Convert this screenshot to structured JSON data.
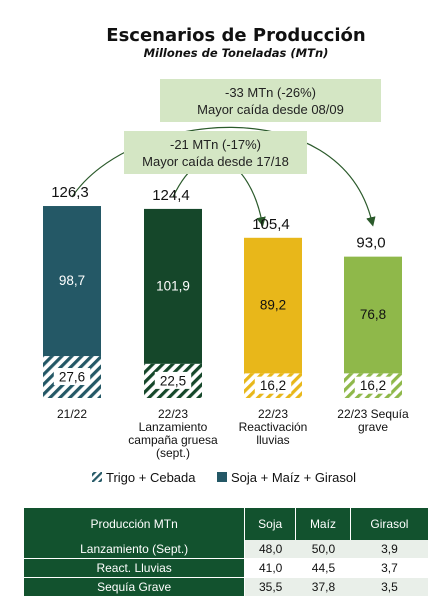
{
  "chart_data": {
    "type": "bar",
    "stacked": true,
    "title": "Escenarios de Producción",
    "subtitle": "Millones de Toneladas (MTn)",
    "categories": [
      [
        "21/22"
      ],
      [
        "22/23",
        "Lanzamiento",
        "campaña gruesa",
        "(sept.)"
      ],
      [
        "22/23",
        "Reactivación",
        "lluvias"
      ],
      [
        "22/23 Sequía",
        "grave"
      ]
    ],
    "series": [
      {
        "name": "Trigo + Cebada",
        "values": [
          27.6,
          22.5,
          16.2,
          16.2
        ]
      },
      {
        "name": "Soja + Maíz + Girasol",
        "values": [
          98.7,
          101.9,
          89.2,
          76.8
        ]
      }
    ],
    "totals": [
      126.3,
      124.4,
      105.4,
      93.0
    ],
    "labels": {
      "totals": [
        "126,3",
        "124,4",
        "105,4",
        "93,0"
      ],
      "trigo": [
        "27,6",
        "22,5",
        "16,2",
        "16,2"
      ],
      "soja": [
        "98,7",
        "101,9",
        "89,2",
        "76,8"
      ]
    },
    "colors": {
      "top": [
        "#245866",
        "#15472a",
        "#e8b71a",
        "#8fb84a"
      ],
      "hatch_stripe": [
        "#245866",
        "#15472a",
        "#e8b71a",
        "#8fb84a"
      ],
      "callout_fill": "#d4e6c4",
      "legend_trigo": "#245866",
      "legend_soja": "#245866"
    },
    "annotations": [
      {
        "line1": "-33 MTn (-26%)",
        "line2": "Mayor caída desde 08/09",
        "from": 0,
        "to": 3
      },
      {
        "line1": "-21 MTn (-17%)",
        "line2": "Mayor caída desde 17/18",
        "from": 1,
        "to": 2
      }
    ],
    "legend_position": "bottom",
    "grid": false
  },
  "table": {
    "headers": [
      "Producción MTn",
      "Soja",
      "Maíz",
      "Girasol"
    ],
    "rows": [
      [
        "Lanzamiento (Sept.)",
        "48,0",
        "50,0",
        "3,9"
      ],
      [
        "React. Lluvias",
        "41,0",
        "44,5",
        "3,7"
      ],
      [
        "Sequía Grave",
        "35,5",
        "37,8",
        "3,5"
      ]
    ]
  }
}
